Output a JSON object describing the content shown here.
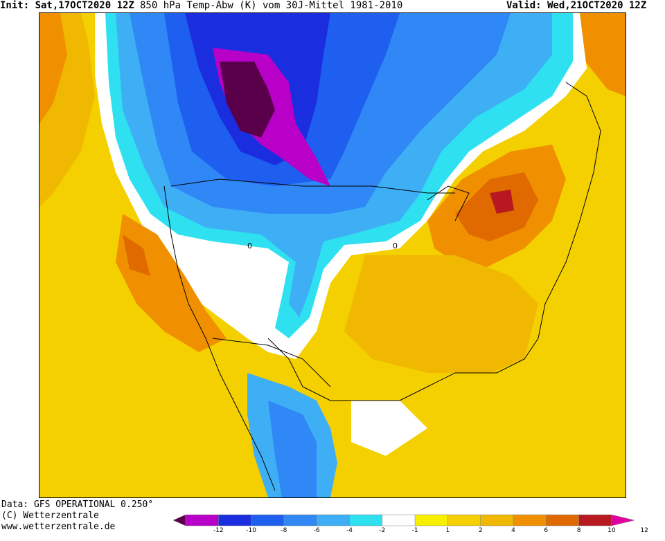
{
  "header": {
    "init_label": "Init: Sat,17OCT2020 12Z",
    "title": "850 hPa Temp-Abw (K) vom 30J-Mittel 1981-2010",
    "valid_label": "Valid: Wed,21OCT2020 12Z"
  },
  "footer": {
    "data_source": "Data: GFS OPERATIONAL 0.250°",
    "copyright": "(C) Wetterzentrale",
    "website": "www.wetterzentrale.de"
  },
  "map": {
    "contour_zero_label": "0"
  },
  "legend": {
    "colors": [
      "#5a004a",
      "#b800c8",
      "#1a2ee0",
      "#1f5ff0",
      "#2f88f5",
      "#3eaef5",
      "#2ee0f0",
      "#ffffff",
      "#f8f000",
      "#f5d000",
      "#f0b800",
      "#f09000",
      "#e06a00",
      "#b81820",
      "#e000a0"
    ],
    "tick_labels": [
      "-12",
      "-10",
      "-8",
      "-6",
      "-4",
      "-2",
      "-1",
      "1",
      "2",
      "4",
      "6",
      "8",
      "10",
      "12"
    ]
  },
  "colors": {
    "neg12": "#5a004a",
    "neg10": "#b800c8",
    "neg8": "#1a2ee0",
    "neg6": "#1f5ff0",
    "neg4": "#2f88f5",
    "neg2": "#3eaef5",
    "neg1": "#2ee0f0",
    "zero": "#ffffff",
    "pos1": "#f8f000",
    "pos2": "#f5d000",
    "pos4": "#f0b800",
    "pos6": "#f09000",
    "pos8": "#e06a00",
    "pos10": "#b81820",
    "pos12": "#e000a0"
  }
}
